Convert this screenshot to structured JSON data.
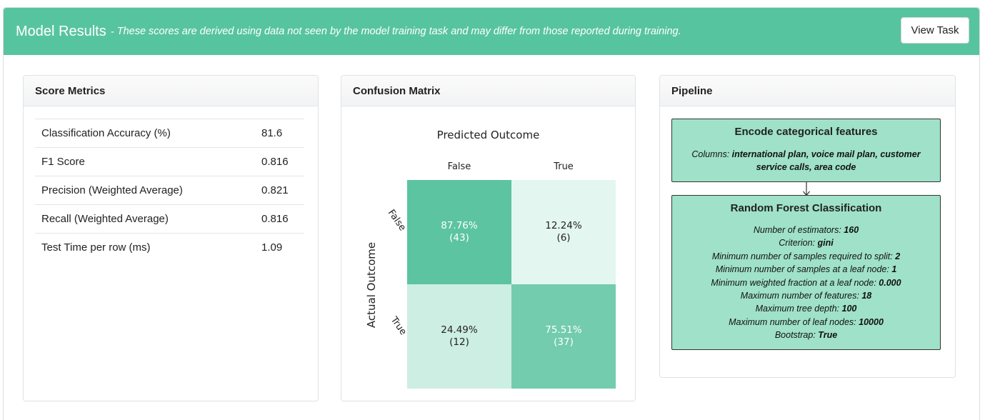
{
  "header": {
    "title": "Model Results",
    "separator": "-",
    "subtitle": "These scores are derived using data not seen by the model training task and may differ from those reported during training.",
    "view_task_label": "View Task",
    "color": "#57c4a0"
  },
  "metrics": {
    "title": "Score Metrics",
    "rows": [
      {
        "label": "Classification Accuracy (%)",
        "value": "81.6"
      },
      {
        "label": "F1 Score",
        "value": "0.816"
      },
      {
        "label": "Precision (Weighted Average)",
        "value": "0.821"
      },
      {
        "label": "Recall (Weighted Average)",
        "value": "0.816"
      },
      {
        "label": "Test Time per row (ms)",
        "value": "1.09"
      }
    ]
  },
  "confusion": {
    "title": "Confusion Matrix",
    "chart_data": {
      "type": "heatmap",
      "title": "Predicted Outcome",
      "xlabel": "Predicted Outcome",
      "ylabel": "Actual Outcome",
      "x_categories": [
        "False",
        "True"
      ],
      "y_categories": [
        "False",
        "True"
      ],
      "cells": [
        [
          {
            "pct": "87.76%",
            "count": "(43)",
            "fraction": 0.8776
          },
          {
            "pct": "12.24%",
            "count": "(6)",
            "fraction": 0.1224
          }
        ],
        [
          {
            "pct": "24.49%",
            "count": "(12)",
            "fraction": 0.2449
          },
          {
            "pct": "75.51%",
            "count": "(37)",
            "fraction": 0.7551
          }
        ]
      ],
      "colors": {
        "high": "#5cc4a0",
        "low": "#e7f7f1"
      }
    }
  },
  "pipeline": {
    "title": "Pipeline",
    "steps": [
      {
        "title": "Encode categorical features",
        "params": [
          {
            "name": "Columns:",
            "value": "international plan, voice mail plan, customer service calls, area code"
          }
        ]
      },
      {
        "title": "Random Forest Classification",
        "params": [
          {
            "name": "Number of estimators:",
            "value": "160"
          },
          {
            "name": "Criterion:",
            "value": "gini"
          },
          {
            "name": "Minimum number of samples required to split:",
            "value": "2"
          },
          {
            "name": "Minimum number of samples at a leaf node:",
            "value": "1"
          },
          {
            "name": "Minimum weighted fraction at a leaf node:",
            "value": "0.000"
          },
          {
            "name": "Maximum number of features:",
            "value": "18"
          },
          {
            "name": "Maximum tree depth:",
            "value": "100"
          },
          {
            "name": "Maximum number of leaf nodes:",
            "value": "10000"
          },
          {
            "name": "Bootstrap:",
            "value": "True"
          }
        ]
      }
    ],
    "box_color": "#9fe1c9"
  }
}
